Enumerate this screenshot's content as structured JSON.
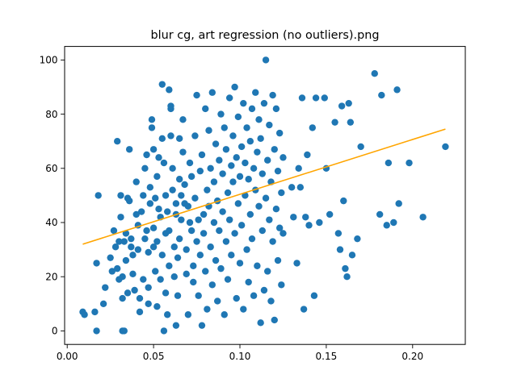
{
  "chart_data": {
    "type": "scatter",
    "title": "blur cg, art regression (no outliers).png",
    "xlabel": "",
    "ylabel": "",
    "xlim": [
      -0.0015,
      0.2305
    ],
    "ylim": [
      -5,
      105
    ],
    "xticks": [
      0.0,
      0.05,
      0.1,
      0.15,
      0.2
    ],
    "xtick_labels": [
      "0.00",
      "0.05",
      "0.10",
      "0.15",
      "0.20"
    ],
    "yticks": [
      0,
      20,
      40,
      60,
      80,
      100
    ],
    "ytick_labels": [
      "0",
      "20",
      "40",
      "60",
      "80",
      "100"
    ],
    "grid": false,
    "legend": "none",
    "series": [
      {
        "type": "scatter",
        "color": "#1f77b4",
        "points": [
          [
            0.009,
            7
          ],
          [
            0.01,
            6
          ],
          [
            0.016,
            7
          ],
          [
            0.017,
            0
          ],
          [
            0.017,
            25
          ],
          [
            0.018,
            50
          ],
          [
            0.021,
            10
          ],
          [
            0.022,
            16
          ],
          [
            0.025,
            27
          ],
          [
            0.026,
            22
          ],
          [
            0.027,
            37
          ],
          [
            0.028,
            31
          ],
          [
            0.029,
            70
          ],
          [
            0.029,
            23
          ],
          [
            0.03,
            33
          ],
          [
            0.03,
            19
          ],
          [
            0.031,
            50
          ],
          [
            0.031,
            42
          ],
          [
            0.032,
            20
          ],
          [
            0.032,
            12
          ],
          [
            0.032,
            0
          ],
          [
            0.033,
            0
          ],
          [
            0.033,
            33
          ],
          [
            0.034,
            36
          ],
          [
            0.034,
            26
          ],
          [
            0.035,
            49
          ],
          [
            0.035,
            14
          ],
          [
            0.036,
            67
          ],
          [
            0.036,
            48
          ],
          [
            0.037,
            31
          ],
          [
            0.037,
            34
          ],
          [
            0.038,
            21
          ],
          [
            0.038,
            28
          ],
          [
            0.039,
            15
          ],
          [
            0.04,
            43
          ],
          [
            0.04,
            55
          ],
          [
            0.041,
            39
          ],
          [
            0.041,
            30
          ],
          [
            0.042,
            7
          ],
          [
            0.042,
            12
          ],
          [
            0.043,
            44
          ],
          [
            0.044,
            19
          ],
          [
            0.044,
            50
          ],
          [
            0.045,
            34
          ],
          [
            0.045,
            60
          ],
          [
            0.046,
            37
          ],
          [
            0.046,
            65
          ],
          [
            0.047,
            10
          ],
          [
            0.047,
            16
          ],
          [
            0.047,
            29
          ],
          [
            0.048,
            53
          ],
          [
            0.048,
            47
          ],
          [
            0.049,
            75
          ],
          [
            0.049,
            78
          ],
          [
            0.05,
            67
          ],
          [
            0.05,
            31
          ],
          [
            0.05,
            38
          ],
          [
            0.051,
            22
          ],
          [
            0.051,
            49
          ],
          [
            0.052,
            9
          ],
          [
            0.052,
            33
          ],
          [
            0.052,
            57
          ],
          [
            0.053,
            64
          ],
          [
            0.053,
            45
          ],
          [
            0.054,
            19
          ],
          [
            0.054,
            42
          ],
          [
            0.055,
            91
          ],
          [
            0.055,
            71
          ],
          [
            0.055,
            28
          ],
          [
            0.056,
            0
          ],
          [
            0.056,
            62
          ],
          [
            0.057,
            50
          ],
          [
            0.057,
            36
          ],
          [
            0.057,
            14
          ],
          [
            0.058,
            44
          ],
          [
            0.058,
            6
          ],
          [
            0.059,
            24
          ],
          [
            0.059,
            37
          ],
          [
            0.059,
            89
          ],
          [
            0.06,
            82
          ],
          [
            0.06,
            83
          ],
          [
            0.06,
            72
          ],
          [
            0.061,
            52
          ],
          [
            0.061,
            60
          ],
          [
            0.062,
            31
          ],
          [
            0.062,
            20
          ],
          [
            0.063,
            47
          ],
          [
            0.063,
            43
          ],
          [
            0.063,
            2
          ],
          [
            0.064,
            13
          ],
          [
            0.064,
            27
          ],
          [
            0.065,
            71
          ],
          [
            0.065,
            34
          ],
          [
            0.065,
            56
          ],
          [
            0.066,
            41
          ],
          [
            0.066,
            50
          ],
          [
            0.067,
            78
          ],
          [
            0.067,
            66
          ],
          [
            0.068,
            54
          ],
          [
            0.068,
            47
          ],
          [
            0.069,
            30
          ],
          [
            0.069,
            21
          ],
          [
            0.07,
            46
          ],
          [
            0.07,
            6
          ],
          [
            0.071,
            62
          ],
          [
            0.071,
            40
          ],
          [
            0.072,
            37
          ],
          [
            0.072,
            57
          ],
          [
            0.073,
            24
          ],
          [
            0.073,
            18
          ],
          [
            0.074,
            49
          ],
          [
            0.074,
            72
          ],
          [
            0.075,
            33
          ],
          [
            0.075,
            87
          ],
          [
            0.076,
            41
          ],
          [
            0.076,
            13
          ],
          [
            0.077,
            59
          ],
          [
            0.077,
            28
          ],
          [
            0.078,
            65
          ],
          [
            0.078,
            2
          ],
          [
            0.079,
            43
          ],
          [
            0.079,
            36
          ],
          [
            0.08,
            82
          ],
          [
            0.08,
            22
          ],
          [
            0.081,
            52
          ],
          [
            0.081,
            8
          ],
          [
            0.082,
            74
          ],
          [
            0.082,
            46
          ],
          [
            0.083,
            60
          ],
          [
            0.083,
            31
          ],
          [
            0.084,
            88
          ],
          [
            0.084,
            17
          ],
          [
            0.085,
            55
          ],
          [
            0.085,
            40
          ],
          [
            0.086,
            69
          ],
          [
            0.086,
            26
          ],
          [
            0.087,
            48
          ],
          [
            0.087,
            11
          ],
          [
            0.088,
            63
          ],
          [
            0.088,
            37
          ],
          [
            0.089,
            80
          ],
          [
            0.089,
            23
          ],
          [
            0.09,
            58
          ],
          [
            0.09,
            44
          ],
          [
            0.091,
            75
          ],
          [
            0.091,
            6
          ],
          [
            0.092,
            67
          ],
          [
            0.092,
            33
          ],
          [
            0.093,
            51
          ],
          [
            0.093,
            19
          ],
          [
            0.094,
            86
          ],
          [
            0.094,
            41
          ],
          [
            0.095,
            61
          ],
          [
            0.095,
            28
          ],
          [
            0.096,
            72
          ],
          [
            0.096,
            55
          ],
          [
            0.097,
            90
          ],
          [
            0.097,
            36
          ],
          [
            0.098,
            64
          ],
          [
            0.098,
            12
          ],
          [
            0.099,
            79
          ],
          [
            0.099,
            47
          ],
          [
            0.1,
            57
          ],
          [
            0.1,
            25
          ],
          [
            0.101,
            68
          ],
          [
            0.101,
            39
          ],
          [
            0.102,
            84
          ],
          [
            0.102,
            8
          ],
          [
            0.103,
            62
          ],
          [
            0.103,
            50
          ],
          [
            0.104,
            75
          ],
          [
            0.104,
            30
          ],
          [
            0.105,
            56
          ],
          [
            0.105,
            18
          ],
          [
            0.106,
            70
          ],
          [
            0.106,
            43
          ],
          [
            0.107,
            82
          ],
          [
            0.107,
            34
          ],
          [
            0.108,
            60
          ],
          [
            0.108,
            13
          ],
          [
            0.109,
            88
          ],
          [
            0.109,
            52
          ],
          [
            0.11,
            66
          ],
          [
            0.11,
            24
          ],
          [
            0.111,
            78
          ],
          [
            0.111,
            46
          ],
          [
            0.112,
            71
          ],
          [
            0.112,
            3
          ],
          [
            0.113,
            58
          ],
          [
            0.113,
            37
          ],
          [
            0.114,
            84
          ],
          [
            0.114,
            15
          ],
          [
            0.115,
            100
          ],
          [
            0.115,
            49
          ],
          [
            0.116,
            63
          ],
          [
            0.116,
            22
          ],
          [
            0.117,
            76
          ],
          [
            0.117,
            41
          ],
          [
            0.118,
            55
          ],
          [
            0.118,
            11
          ],
          [
            0.119,
            87
          ],
          [
            0.119,
            33
          ],
          [
            0.12,
            67
          ],
          [
            0.12,
            4
          ],
          [
            0.121,
            82
          ],
          [
            0.121,
            45
          ],
          [
            0.122,
            59
          ],
          [
            0.122,
            26
          ],
          [
            0.123,
            73
          ],
          [
            0.123,
            38
          ],
          [
            0.124,
            51
          ],
          [
            0.124,
            17
          ],
          [
            0.125,
            64
          ],
          [
            0.125,
            36
          ],
          [
            0.13,
            53
          ],
          [
            0.131,
            42
          ],
          [
            0.133,
            25
          ],
          [
            0.134,
            60
          ],
          [
            0.135,
            53
          ],
          [
            0.136,
            86
          ],
          [
            0.137,
            8
          ],
          [
            0.138,
            42
          ],
          [
            0.139,
            65
          ],
          [
            0.14,
            39
          ],
          [
            0.142,
            75
          ],
          [
            0.143,
            13
          ],
          [
            0.144,
            86
          ],
          [
            0.146,
            40
          ],
          [
            0.149,
            86
          ],
          [
            0.15,
            60
          ],
          [
            0.152,
            43
          ],
          [
            0.155,
            77
          ],
          [
            0.157,
            36
          ],
          [
            0.158,
            30
          ],
          [
            0.159,
            83
          ],
          [
            0.16,
            48
          ],
          [
            0.161,
            23
          ],
          [
            0.162,
            20
          ],
          [
            0.163,
            84
          ],
          [
            0.164,
            77
          ],
          [
            0.165,
            28
          ],
          [
            0.168,
            34
          ],
          [
            0.17,
            68
          ],
          [
            0.178,
            95
          ],
          [
            0.181,
            43
          ],
          [
            0.182,
            87
          ],
          [
            0.185,
            39
          ],
          [
            0.186,
            62
          ],
          [
            0.189,
            40
          ],
          [
            0.191,
            89
          ],
          [
            0.192,
            47
          ],
          [
            0.198,
            62
          ],
          [
            0.206,
            42
          ],
          [
            0.219,
            68
          ]
        ]
      },
      {
        "type": "line",
        "color": "#ffa500",
        "points": [
          [
            0.009,
            32
          ],
          [
            0.219,
            74.5
          ]
        ]
      }
    ]
  }
}
